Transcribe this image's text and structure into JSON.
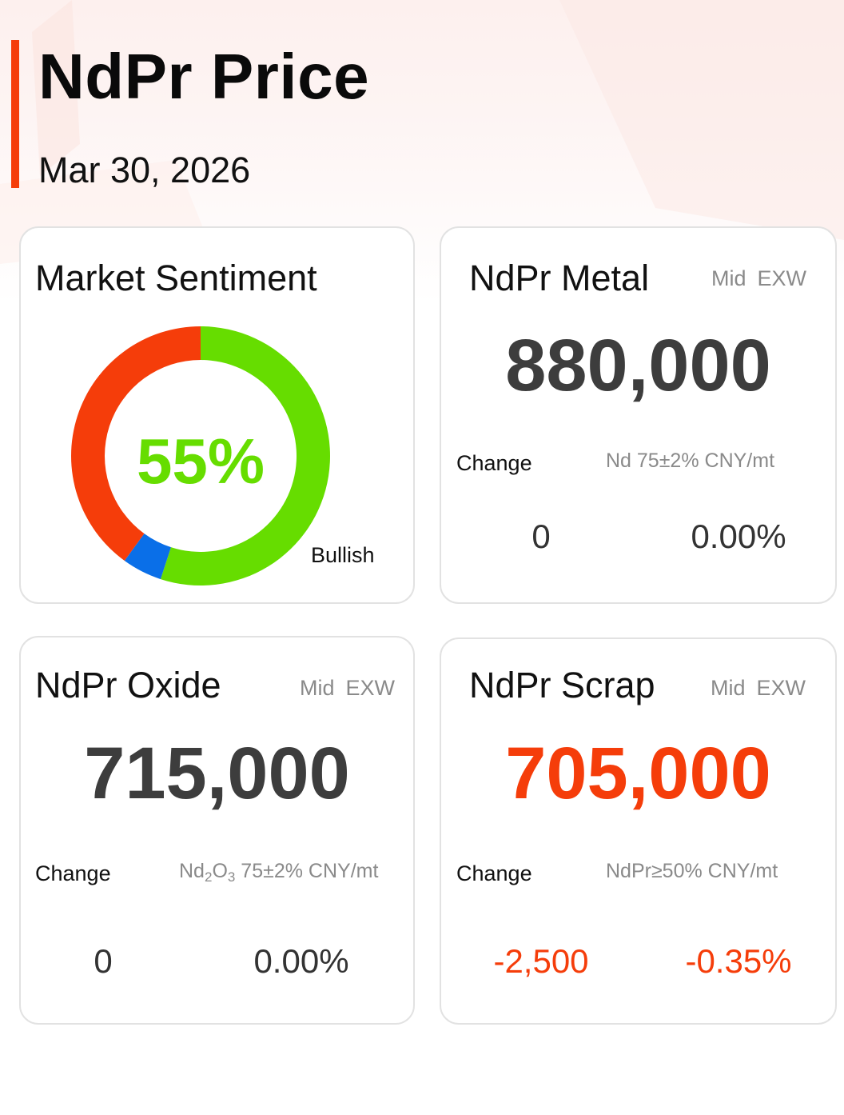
{
  "header": {
    "title": "NdPr Price",
    "date": "Mar 30, 2026"
  },
  "colors": {
    "accent": "#f53d0a",
    "bullish": "#66dd00",
    "bearish": "#f53d0a",
    "neutral": "#0a6fe8",
    "price_text": "#3d3d3d"
  },
  "sentiment": {
    "title": "Market Sentiment",
    "percent_label": "55%",
    "label": "Bullish",
    "segments": [
      {
        "name": "bullish",
        "value": 55,
        "color": "#66dd00"
      },
      {
        "name": "neutral",
        "value": 5,
        "color": "#0a6fe8"
      },
      {
        "name": "bearish",
        "value": 40,
        "color": "#f53d0a"
      }
    ]
  },
  "metal": {
    "title": "NdPr Metal",
    "tag_mid": "Mid",
    "tag_exw": "EXW",
    "price": "880,000",
    "change_label": "Change",
    "spec": "Nd 75±2% CNY/mt",
    "change_abs": "0",
    "change_pct": "0.00%"
  },
  "oxide": {
    "title": "NdPr Oxide",
    "tag_mid": "Mid",
    "tag_exw": "EXW",
    "price": "715,000",
    "change_label": "Change",
    "spec_base": "Nd",
    "spec_sub1": "2",
    "spec_mid": "O",
    "spec_sub2": "3",
    "spec_rest": " 75±2% CNY/mt",
    "change_abs": "0",
    "change_pct": "0.00%"
  },
  "scrap": {
    "title": "NdPr Scrap",
    "tag_mid": "Mid",
    "tag_exw": "EXW",
    "price": "705,000",
    "change_label": "Change",
    "spec": "NdPr≥50% CNY/mt",
    "change_abs": "-2,500",
    "change_pct": "-0.35%"
  }
}
